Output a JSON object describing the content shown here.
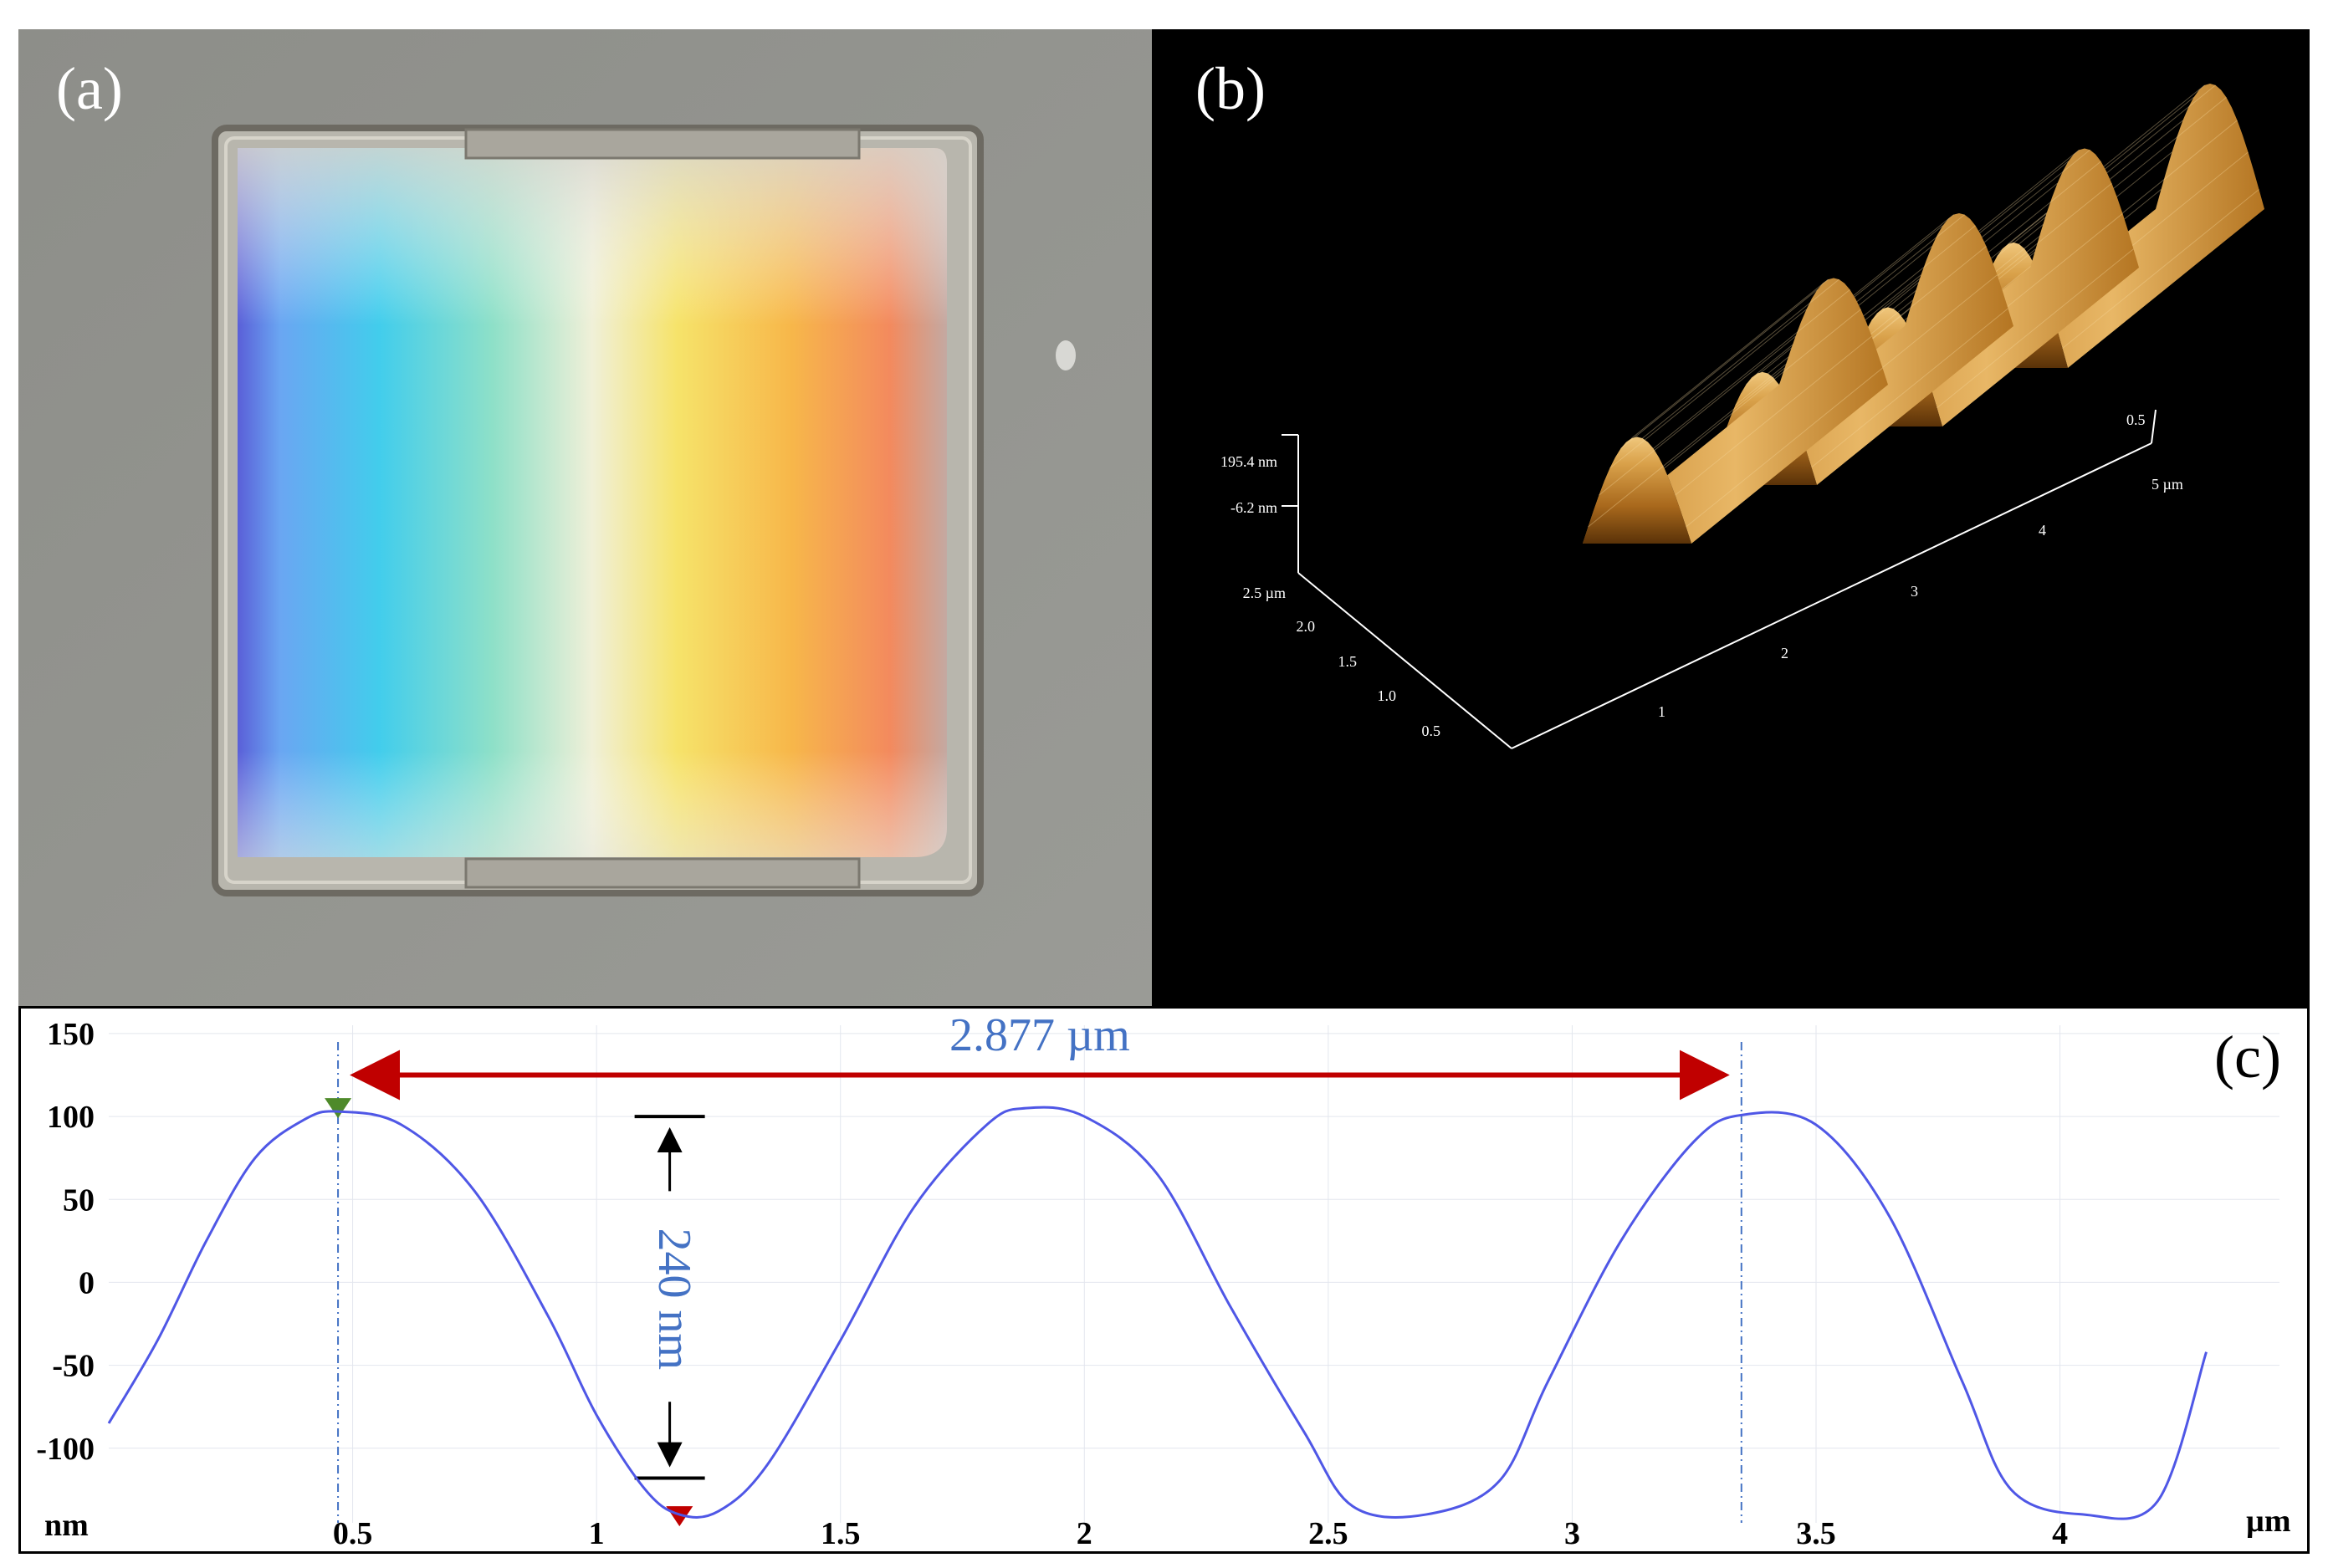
{
  "panels": {
    "a": {
      "label": "(a)"
    },
    "b": {
      "label": "(b)"
    },
    "c": {
      "label": "(c)"
    }
  },
  "afm3d": {
    "z_labels": [
      "195.4 nm",
      "-6.2 nm"
    ],
    "y_labels": [
      "2.5 µm",
      "2.0",
      "1.5",
      "1.0",
      "0.5"
    ],
    "x_labels": [
      "1",
      "2",
      "3",
      "4",
      "5 µm"
    ],
    "x_right_label": "0.5"
  },
  "chart_data": {
    "type": "line",
    "x_unit": "µm",
    "y_unit": "nm",
    "xticks": [
      "0.5",
      "1",
      "1.5",
      "2",
      "2.5",
      "3",
      "3.5",
      "4"
    ],
    "yticks": [
      "150",
      "100",
      "50",
      "0",
      "-50",
      "-100"
    ],
    "xlim": [
      0.0,
      4.45
    ],
    "ylim": [
      -145,
      155
    ],
    "series": [
      {
        "x": [
          0.0,
          0.1,
          0.2,
          0.3,
          0.4,
          0.47,
          0.6,
          0.75,
          0.9,
          1.0,
          1.1,
          1.17,
          1.25,
          1.35,
          1.5,
          1.65,
          1.8,
          1.88,
          2.0,
          2.15,
          2.3,
          2.45,
          2.55,
          2.7,
          2.85,
          2.95,
          3.1,
          3.25,
          3.35,
          3.5,
          3.65,
          3.8,
          3.9,
          4.05,
          4.2,
          4.3
        ],
        "y": [
          -85,
          -35,
          25,
          75,
          98,
          103,
          95,
          55,
          -20,
          -80,
          -125,
          -140,
          -138,
          -110,
          -35,
          45,
          95,
          105,
          100,
          65,
          -15,
          -90,
          -135,
          -140,
          -120,
          -60,
          25,
          85,
          101,
          95,
          40,
          -60,
          -125,
          -140,
          -132,
          -42
        ]
      }
    ],
    "annotations": {
      "period_label": "2.877 µm",
      "height_label": "240 nm",
      "marker_start_x": 0.47,
      "marker_end_x": 3.347
    }
  },
  "colors": {
    "profile_line": "#4f57e6",
    "annotation_text": "#4472c4",
    "arrow": "#c00000",
    "peak_marker": "#4e8a2a",
    "valley_marker": "#c00000"
  }
}
